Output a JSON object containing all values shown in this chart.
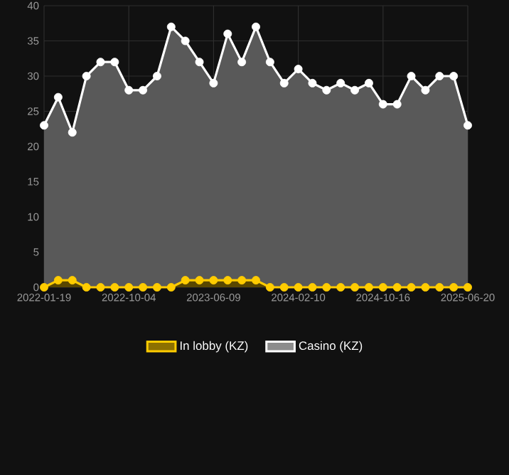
{
  "chart_data": {
    "type": "area",
    "categories": [
      "2022-01-19",
      null,
      null,
      null,
      null,
      null,
      "2022-10-04",
      null,
      null,
      null,
      null,
      null,
      "2023-06-09",
      null,
      null,
      null,
      null,
      null,
      "2024-02-10",
      null,
      null,
      null,
      null,
      null,
      "2024-10-16",
      null,
      null,
      null,
      null,
      null,
      "2025-06-20"
    ],
    "series": [
      {
        "name": "In lobby (KZ)",
        "color": "#ffcc00",
        "values": [
          0,
          1,
          1,
          0,
          0,
          0,
          0,
          0,
          0,
          0,
          1,
          1,
          1,
          1,
          1,
          1,
          0,
          0,
          0,
          0,
          0,
          0,
          0,
          0,
          0,
          0,
          0,
          0,
          0,
          0,
          0
        ]
      },
      {
        "name": "Casino (KZ)",
        "color": "#ffffff",
        "values": [
          23,
          27,
          22,
          30,
          32,
          32,
          28,
          28,
          30,
          37,
          35,
          32,
          29,
          36,
          32,
          37,
          32,
          29,
          31,
          29,
          28,
          29,
          28,
          29,
          26,
          26,
          30,
          28,
          30,
          30,
          23
        ]
      }
    ],
    "ylim": [
      0,
      40
    ],
    "yticks": [
      0,
      5,
      10,
      15,
      20,
      25,
      30,
      35,
      40
    ],
    "grid": true,
    "legend": "bottom",
    "marker": "circle"
  }
}
